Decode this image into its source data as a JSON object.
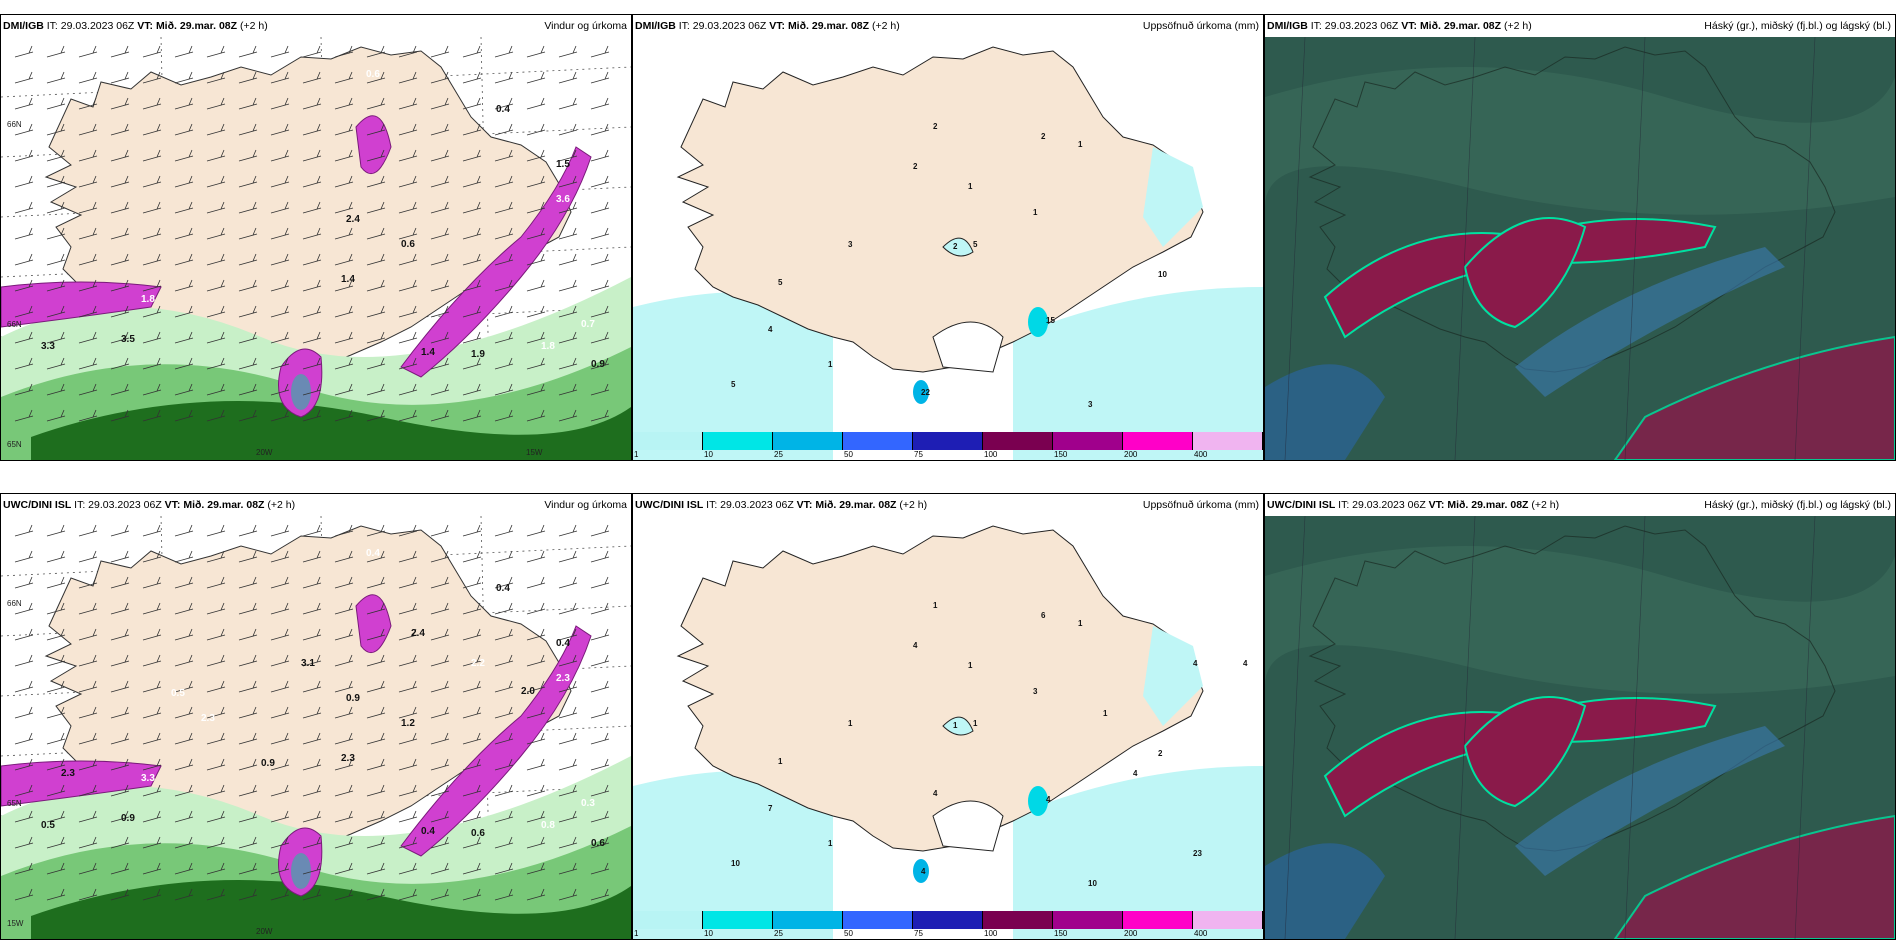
{
  "panels": [
    {
      "model": "DMI/IGB",
      "it": "IT: 29.03.2023 06Z",
      "vt_label": "VT:",
      "vt": "Mið. 29.mar. 08Z",
      "lead": "(+2 h)",
      "title": "Vindur og úrkoma",
      "kind": "wind",
      "values": [
        "0.6",
        "0.4",
        "1.5",
        "3.6",
        "2.4",
        "0.6",
        "1.8",
        "3.5",
        "3.3",
        "0.7",
        "1.4",
        "1.9",
        "1.8",
        "0.9",
        "1.4"
      ],
      "axis": [
        "66N",
        "66N",
        "20W",
        "65N",
        "15W"
      ]
    },
    {
      "model": "DMI/IGB",
      "it": "IT: 29.03.2023 06Z",
      "vt_label": "VT:",
      "vt": "Mið. 29.mar. 08Z",
      "lead": "(+2 h)",
      "title": "Uppsöfnuð úrkoma (mm)",
      "kind": "precip",
      "values": [
        "2",
        "2",
        "1",
        "2",
        "1",
        "2",
        "1",
        "3",
        "5",
        "4",
        "1",
        "10",
        "5",
        "5",
        "3",
        "22",
        "15"
      ]
    },
    {
      "model": "DMI/IGB",
      "it": "IT: 29.03.2023 06Z",
      "vt_label": "VT:",
      "vt": "Mið. 29.mar. 08Z",
      "lead": "(+2 h)",
      "title": "Háský (gr.), miðský (fj.bl.) og lágský (bl.)",
      "kind": "cloud"
    },
    {
      "model": "UWC/DINI ISL",
      "it": "IT: 29.03.2023 06Z",
      "vt_label": "VT:",
      "vt": "Mið. 29.mar. 08Z",
      "lead": "(+2 h)",
      "title": "Vindur og úrkoma",
      "kind": "wind",
      "values": [
        "0.4",
        "0.4",
        "0.4",
        "2.3",
        "0.9",
        "1.2",
        "3.3",
        "0.9",
        "0.5",
        "0.3",
        "0.4",
        "0.6",
        "0.8",
        "0.6",
        "2.3",
        "2.2",
        "2.0",
        "0.9",
        "2.3",
        "3.1",
        "2.4",
        "0.5",
        "2.3"
      ],
      "axis": [
        "66N",
        "65N",
        "20W",
        "15W"
      ]
    },
    {
      "model": "UWC/DINI ISL",
      "it": "IT: 29.03.2023 06Z",
      "vt_label": "VT:",
      "vt": "Mið. 29.mar. 08Z",
      "lead": "(+2 h)",
      "title": "Uppsöfnuð úrkoma (mm)",
      "kind": "precip",
      "values": [
        "1",
        "4",
        "1",
        "6",
        "1",
        "1",
        "3",
        "1",
        "1",
        "7",
        "1",
        "2",
        "1",
        "10",
        "10",
        "4",
        "4",
        "4",
        "4",
        "4",
        "1",
        "4",
        "23"
      ]
    },
    {
      "model": "UWC/DINI ISL",
      "it": "IT: 29.03.2023 06Z",
      "vt_label": "VT:",
      "vt": "Mið. 29.mar. 08Z",
      "lead": "(+2 h)",
      "title": "Háský (gr.), miðský (fj.bl.) og lágský (bl.)",
      "kind": "cloud"
    }
  ],
  "colorbar": {
    "ticks": [
      "1",
      "10",
      "25",
      "50",
      "75",
      "100",
      "150",
      "200",
      "400"
    ],
    "colors": [
      "#b8f4f4",
      "#00e6e6",
      "#00b4e6",
      "#3366ff",
      "#1e1eb4",
      "#7a0050",
      "#a0008c",
      "#ff00c8",
      "#f0b4f0"
    ]
  },
  "colors": {
    "land": "#f7e6d4",
    "rain_light": "#c8f0c8",
    "rain_mid": "#78c878",
    "rain_dark": "#1e6e1e",
    "precip_mag": "#d040d0",
    "cloud_bg": "#2e5a4e",
    "cloud_high": "#8a1a4a",
    "cloud_mid": "#1e8a8a"
  }
}
